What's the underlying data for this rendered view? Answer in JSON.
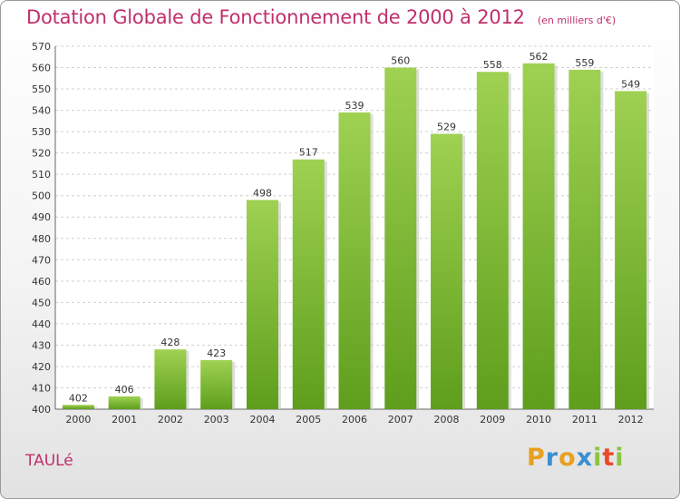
{
  "chart_data": {
    "type": "bar",
    "title": "Dotation Globale de Fonctionnement de 2000 à 2012",
    "subtitle": "(en milliers d'€)",
    "categories": [
      "2000",
      "2001",
      "2002",
      "2003",
      "2004",
      "2005",
      "2006",
      "2007",
      "2008",
      "2009",
      "2010",
      "2011",
      "2012"
    ],
    "values": [
      402,
      406,
      428,
      423,
      498,
      517,
      539,
      560,
      529,
      558,
      562,
      559,
      549
    ],
    "ylim": [
      400,
      570
    ],
    "yticks": [
      400,
      410,
      420,
      430,
      440,
      450,
      460,
      470,
      480,
      490,
      500,
      510,
      520,
      530,
      540,
      550,
      560,
      570
    ],
    "grid": true,
    "bar_color": "#7ab83a"
  },
  "commune": "TAULé",
  "logo": {
    "letters": [
      "P",
      "r",
      "o",
      "x",
      "i",
      "t",
      "i"
    ],
    "colors": [
      "#e8a020",
      "#3a8fd0",
      "#e8a020",
      "#3a8fd0",
      "#8bc53f",
      "#e84a2a",
      "#8bc53f"
    ]
  }
}
